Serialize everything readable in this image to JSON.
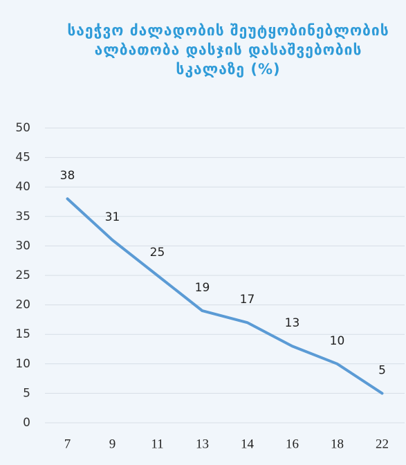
{
  "chart_data": {
    "type": "line",
    "title": "საეჭვო ძალადობის შეუტყობინებლობის ალბათობა დასჯის დასაშვებობის სკალაზე (%)",
    "categories": [
      "7",
      "9",
      "11",
      "13",
      "14",
      "16",
      "18",
      "22"
    ],
    "series": [
      {
        "color": "#5b9bd5",
        "values": [
          38,
          31,
          25,
          19,
          17,
          13,
          10,
          5
        ]
      }
    ],
    "ylim": [
      0,
      50
    ],
    "yticks": [
      0,
      5,
      10,
      15,
      20,
      25,
      30,
      35,
      40,
      45,
      50
    ],
    "grid": true
  }
}
